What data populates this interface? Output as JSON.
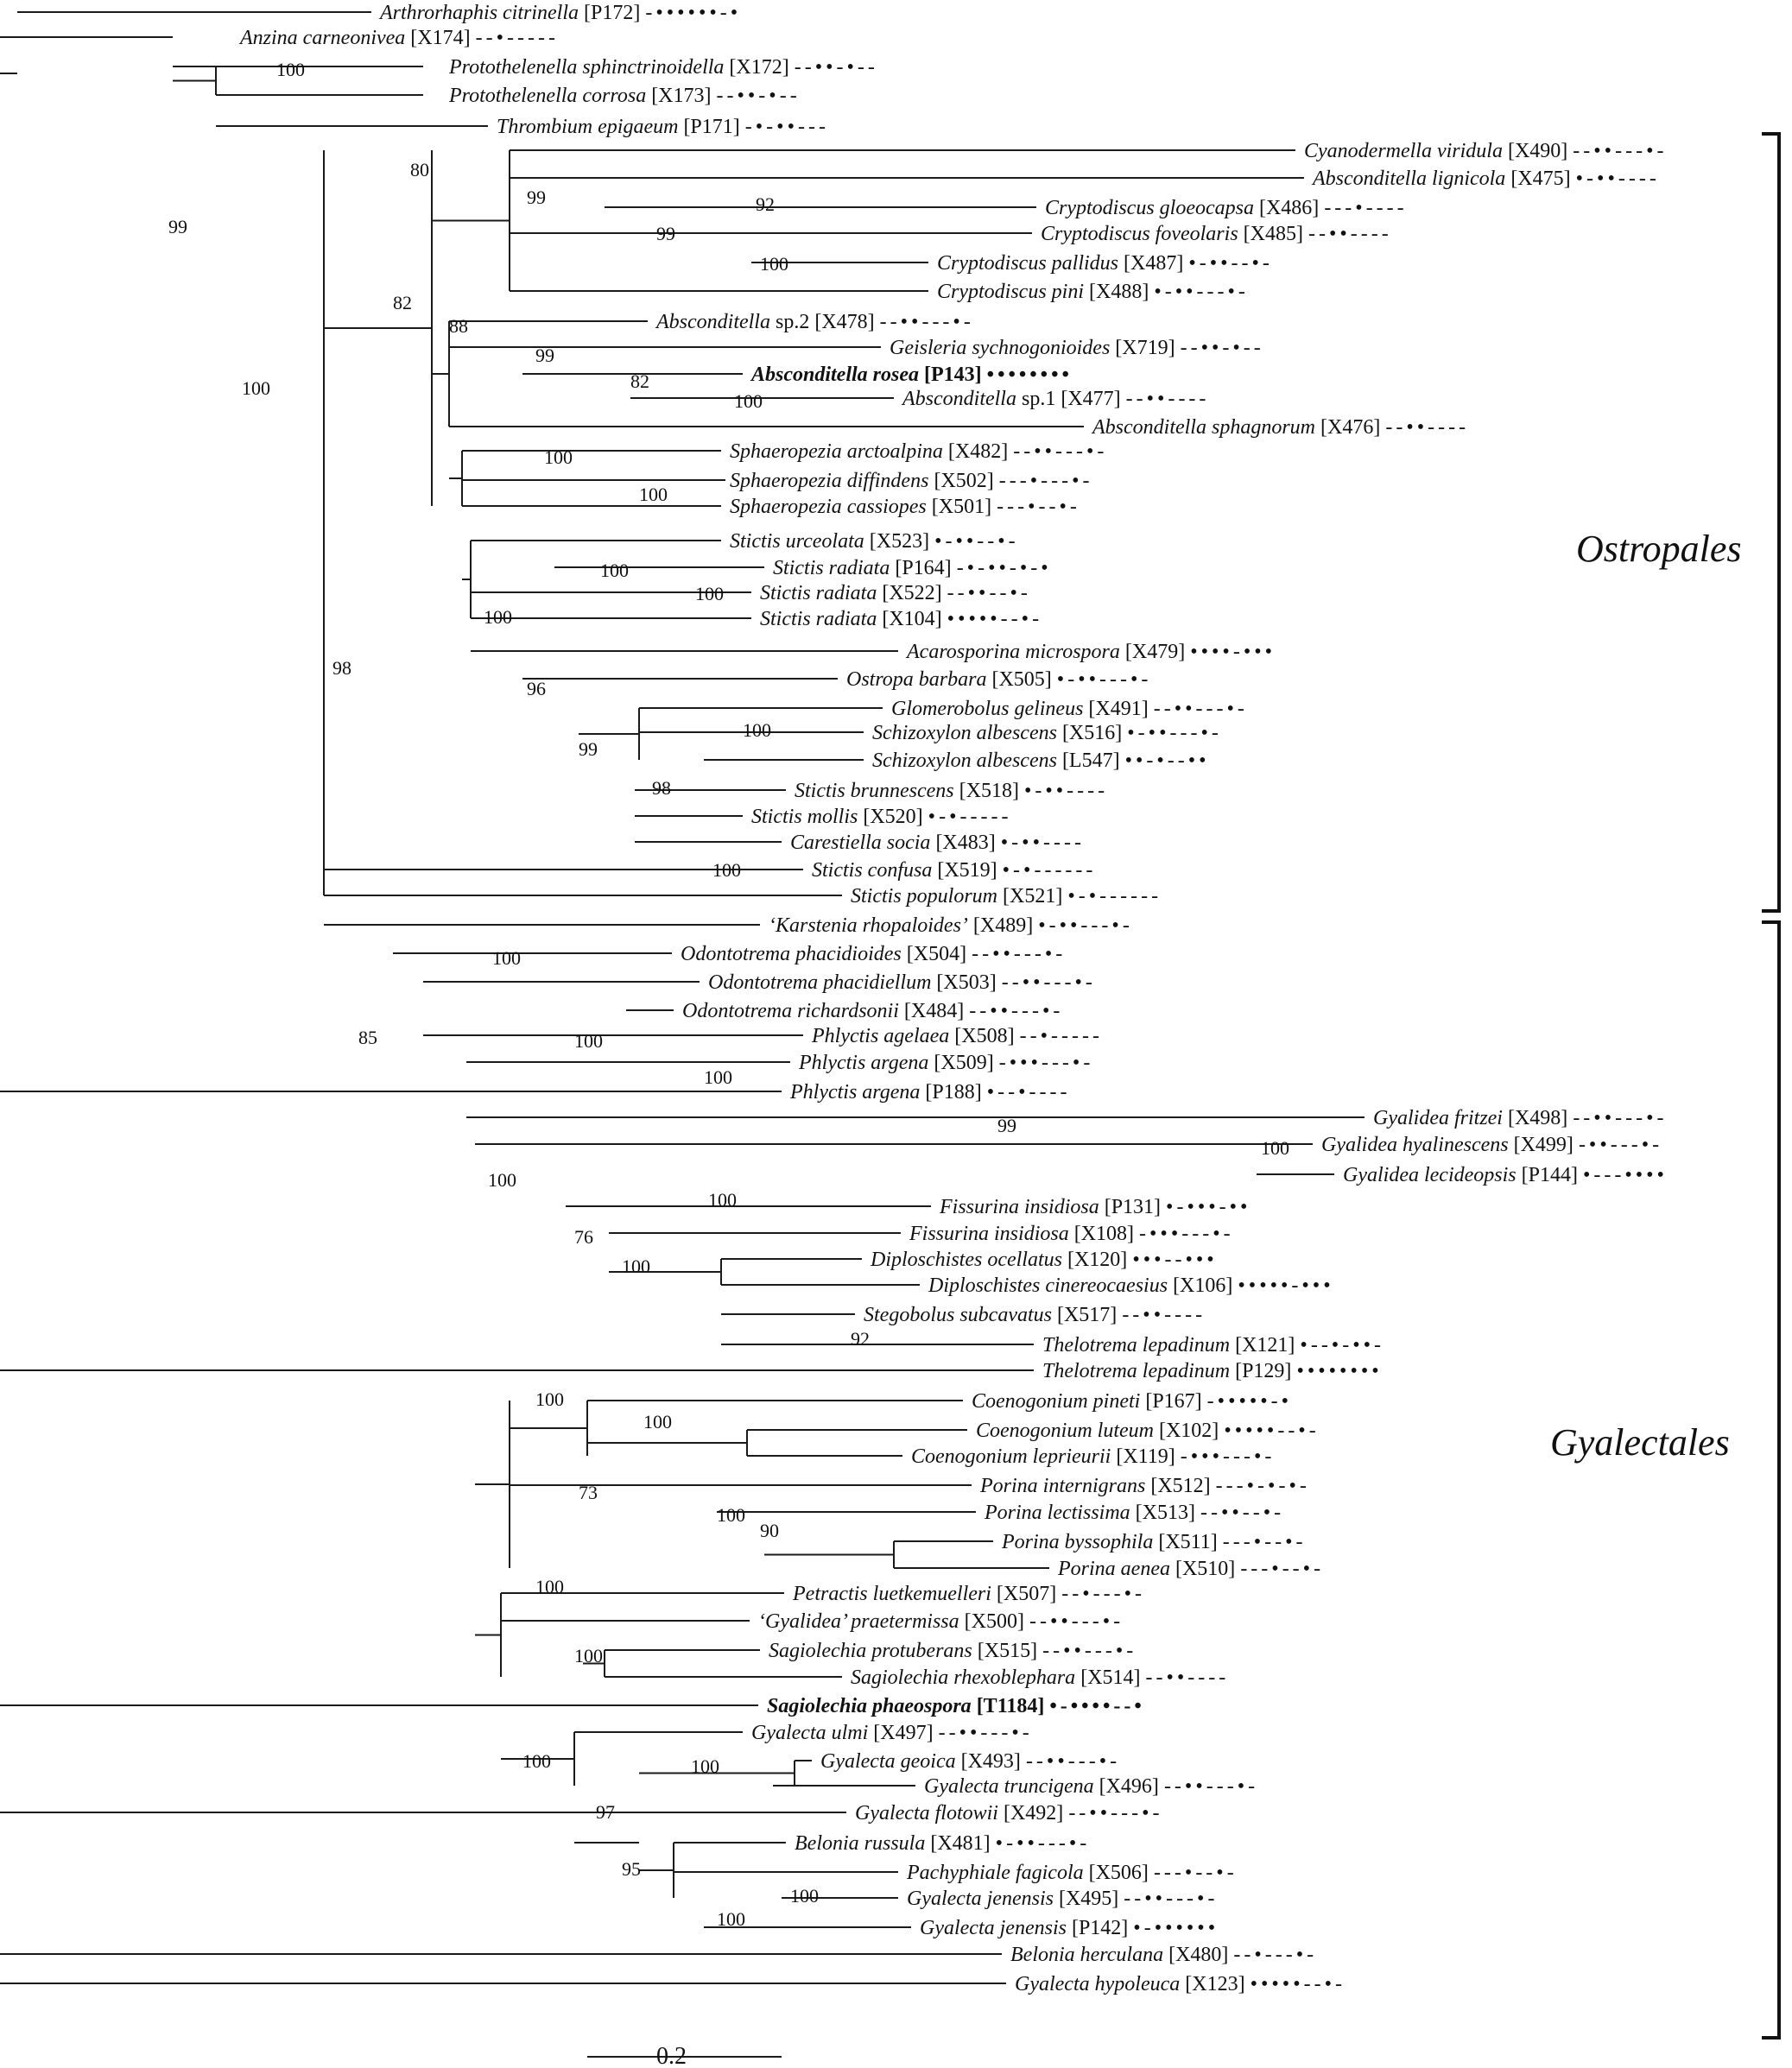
{
  "tree": {
    "taxa": [
      {
        "name": "Arthrorhaphis citrinella",
        "code": "[P172]",
        "pattern": "-••••••-•"
      },
      {
        "name": "Anzina carneonivea",
        "code": "[X174]",
        "pattern": "--•-----"
      },
      {
        "name": "Protothelenella sphinctrinoidella",
        "code": "[X172]",
        "pattern": "--••-•--"
      },
      {
        "name": "Protothelenella corrosa",
        "code": "[X173]",
        "pattern": "--••-•--"
      },
      {
        "name": "Thrombium epigaeum",
        "code": "[P171]",
        "pattern": "-•-••---"
      },
      {
        "name": "Cyanodermella viridula",
        "code": "[X490]",
        "pattern": "--••---•-"
      },
      {
        "name": "Absconditella lignicola",
        "code": "[X475]",
        "pattern": "•-••----"
      },
      {
        "name": "Cryptodiscus gloeocapsa",
        "code": "[X486]",
        "pattern": "---•----"
      },
      {
        "name": "Cryptodiscus foveolaris",
        "code": "[X485]",
        "pattern": "--••----"
      },
      {
        "name": "Cryptodiscus pallidus",
        "code": "[X487]",
        "pattern": "•-••--•-"
      },
      {
        "name": "Cryptodiscus pini",
        "code": "[X488]",
        "pattern": "•-••---•-"
      },
      {
        "name": "Absconditella",
        "suffix": "sp.2",
        "code": "[X478]",
        "pattern": "--••---•-"
      },
      {
        "name": "Geisleria sychnogonioides",
        "code": "[X719]",
        "pattern": "--••-•--"
      },
      {
        "name": "Absconditella rosea",
        "code": "[P143]",
        "pattern": "••••••••",
        "bold": true
      },
      {
        "name": "Absconditella",
        "suffix": "sp.1",
        "code": "[X477]",
        "pattern": "--••----"
      },
      {
        "name": "Absconditella sphagnorum",
        "code": "[X476]",
        "pattern": "--••----"
      },
      {
        "name": "Sphaeropezia arctoalpina",
        "code": "[X482]",
        "pattern": "--••---•-"
      },
      {
        "name": "Sphaeropezia diffindens",
        "code": "[X502]",
        "pattern": "---•---•-"
      },
      {
        "name": "Sphaeropezia cassiopes",
        "code": "[X501]",
        "pattern": "---•--•-"
      },
      {
        "name": "Stictis urceolata",
        "code": "[X523]",
        "pattern": "•-••--•-"
      },
      {
        "name": "Stictis radiata",
        "code": "[P164]",
        "pattern": "-•-••-•-•"
      },
      {
        "name": "Stictis radiata",
        "code": "[X522]",
        "pattern": "--••--•-"
      },
      {
        "name": "Stictis radiata",
        "code": "[X104]",
        "pattern": "•••••--•-"
      },
      {
        "name": "Acarosporina microspora",
        "code": "[X479]",
        "pattern": "••••-•••"
      },
      {
        "name": "Ostropa barbara",
        "code": "[X505]",
        "pattern": "•-••---•-"
      },
      {
        "name": "Glomerobolus gelineus",
        "code": "[X491]",
        "pattern": "--••---•-"
      },
      {
        "name": "Schizoxylon albescens",
        "code": "[X516]",
        "pattern": "•-••---•-"
      },
      {
        "name": "Schizoxylon albescens",
        "code": "[L547]",
        "pattern": "••-•--••"
      },
      {
        "name": "Stictis brunnescens",
        "code": "[X518]",
        "pattern": "•-••----"
      },
      {
        "name": "Stictis mollis",
        "code": "[X520]",
        "pattern": "•-•-----"
      },
      {
        "name": "Carestiella socia",
        "code": "[X483]",
        "pattern": "•-••----"
      },
      {
        "name": "Stictis confusa",
        "code": "[X519]",
        "pattern": "•-•------"
      },
      {
        "name": "Stictis populorum",
        "code": "[X521]",
        "pattern": "•-•------"
      },
      {
        "name": "‘Karstenia rhopaloides’",
        "code": "[X489]",
        "pattern": "•-••---•-"
      },
      {
        "name": "Odontotrema phacidioides",
        "code": "[X504]",
        "pattern": "--••---•-"
      },
      {
        "name": "Odontotrema phacidiellum",
        "code": "[X503]",
        "pattern": "--••---•-"
      },
      {
        "name": "Odontotrema richardsonii",
        "code": "[X484]",
        "pattern": "--••---•-"
      },
      {
        "name": "Phlyctis agelaea",
        "code": "[X508]",
        "pattern": "--•-----"
      },
      {
        "name": "Phlyctis argena",
        "code": "[X509]",
        "pattern": "-•••---•-"
      },
      {
        "name": "Phlyctis argena",
        "code": "[P188]",
        "pattern": "•--•----"
      },
      {
        "name": "Gyalidea fritzei",
        "code": "[X498]",
        "pattern": "--••---•-"
      },
      {
        "name": "Gyalidea hyalinescens",
        "code": "[X499]",
        "pattern": "-••---•-"
      },
      {
        "name": "Gyalidea lecideopsis",
        "code": "[P144]",
        "pattern": "•---••••"
      },
      {
        "name": "Fissurina insidiosa",
        "code": "[P131]",
        "pattern": "•-•••-••"
      },
      {
        "name": "Fissurina insidiosa",
        "code": "[X108]",
        "pattern": "-•••---•-"
      },
      {
        "name": "Diploschistes ocellatus",
        "code": "[X120]",
        "pattern": "•••--•••"
      },
      {
        "name": "Diploschistes cinereocaesius",
        "code": "[X106]",
        "pattern": "•••••-•••"
      },
      {
        "name": "Stegobolus subcavatus",
        "code": "[X517]",
        "pattern": "--••----"
      },
      {
        "name": "Thelotrema lepadinum",
        "code": "[X121]",
        "pattern": "•--•-••-"
      },
      {
        "name": "Thelotrema lepadinum",
        "code": "[P129]",
        "pattern": "••••••••"
      },
      {
        "name": "Coenogonium pineti",
        "code": "[P167]",
        "pattern": "-•••••-•"
      },
      {
        "name": "Coenogonium luteum",
        "code": "[X102]",
        "pattern": "•••••--•-"
      },
      {
        "name": "Coenogonium leprieurii",
        "code": "[X119]",
        "pattern": "-•••---•-"
      },
      {
        "name": "Porina internigrans",
        "code": "[X512]",
        "pattern": "---•-•-•-"
      },
      {
        "name": "Porina lectissima",
        "code": "[X513]",
        "pattern": "--••--•-"
      },
      {
        "name": "Porina byssophila",
        "code": "[X511]",
        "pattern": "---•--•-"
      },
      {
        "name": "Porina aenea",
        "code": "[X510]",
        "pattern": "---•--•-"
      },
      {
        "name": "Petractis luetkemuelleri",
        "code": "[X507]",
        "pattern": "--•---•-"
      },
      {
        "name": "‘Gyalidea’ praetermissa",
        "code": "[X500]",
        "pattern": "--••---•-"
      },
      {
        "name": "Sagiolechia protuberans",
        "code": "[X515]",
        "pattern": "--••---•-"
      },
      {
        "name": "Sagiolechia rhexoblephara",
        "code": "[X514]",
        "pattern": "--••----"
      },
      {
        "name": "Sagiolechia phaeospora",
        "code": "[T1184]",
        "pattern": "•-••••--•",
        "bold": true
      },
      {
        "name": "Gyalecta ulmi",
        "code": "[X497]",
        "pattern": "--••---•-"
      },
      {
        "name": "Gyalecta geoica",
        "code": "[X493]",
        "pattern": "--••---•-"
      },
      {
        "name": "Gyalecta truncigena",
        "code": "[X496]",
        "pattern": "--••---•-"
      },
      {
        "name": "Gyalecta flotowii",
        "code": "[X492]",
        "pattern": "--••---•-"
      },
      {
        "name": "Belonia russula",
        "code": "[X481]",
        "pattern": "•-••---•-"
      },
      {
        "name": "Pachyphiale fagicola",
        "code": "[X506]",
        "pattern": "---•--•-"
      },
      {
        "name": "Gyalecta jenensis",
        "code": "[X495]",
        "pattern": "--••---•-"
      },
      {
        "name": "Gyalecta jenensis",
        "code": "[P142]",
        "pattern": "•-••••••"
      },
      {
        "name": "Belonia herculana",
        "code": "[X480]",
        "pattern": "--•---•-"
      },
      {
        "name": "Gyalecta hypoleuca",
        "code": "[X123]",
        "pattern": "•••••--•-"
      }
    ],
    "support_values": [
      "100",
      "99",
      "100",
      "98",
      "82",
      "80",
      "99",
      "99",
      "92",
      "100",
      "88",
      "99",
      "82",
      "100",
      "100",
      "100",
      "100",
      "100",
      "100",
      "96",
      "99",
      "100",
      "98",
      "100",
      "85",
      "100",
      "100",
      "100",
      "100",
      "99",
      "100",
      "76",
      "100",
      "100",
      "92",
      "100",
      "100",
      "73",
      "100",
      "90",
      "100",
      "100",
      "100",
      "100",
      "97",
      "95",
      "100",
      "100",
      "100"
    ],
    "clades": [
      {
        "name": "Ostropales"
      },
      {
        "name": "Gyalectales"
      }
    ],
    "scale_bar": {
      "label": "0.2"
    }
  }
}
